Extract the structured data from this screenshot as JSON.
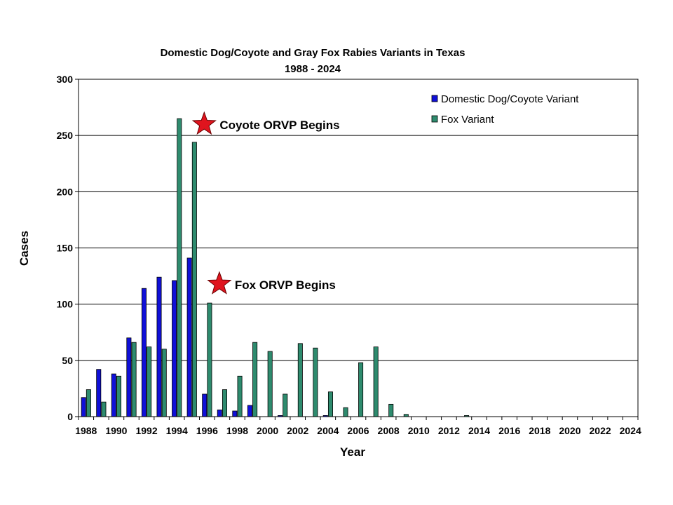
{
  "chart_data": {
    "type": "bar",
    "title": "Domestic Dog/Coyote and Gray Fox Rabies Variants in Texas",
    "subtitle": "1988 - 2024",
    "xlabel": "Year",
    "ylabel": "Cases",
    "ylim": [
      0,
      300
    ],
    "yticks": [
      0,
      50,
      100,
      150,
      200,
      250,
      300
    ],
    "grid": true,
    "legend_position": "top-right",
    "categories": [
      "1988",
      "1989",
      "1990",
      "1991",
      "1992",
      "1993",
      "1994",
      "1995",
      "1996",
      "1997",
      "1998",
      "1999",
      "2000",
      "2001",
      "2002",
      "2003",
      "2004",
      "2005",
      "2006",
      "2007",
      "2008",
      "2009",
      "2010",
      "2011",
      "2012",
      "2013",
      "2014",
      "2015",
      "2016",
      "2017",
      "2018",
      "2019",
      "2020",
      "2021",
      "2022",
      "2023",
      "2024"
    ],
    "tick_labels": [
      "1988",
      "1990",
      "1992",
      "1994",
      "1996",
      "1998",
      "2000",
      "2002",
      "2004",
      "2006",
      "2008",
      "2010",
      "2012",
      "2014",
      "2016",
      "2018",
      "2020",
      "2022",
      "2024"
    ],
    "series": [
      {
        "name": "Domestic Dog/Coyote Variant",
        "color": "#1010d8",
        "values": [
          17,
          42,
          38,
          70,
          114,
          124,
          121,
          141,
          20,
          6,
          5,
          10,
          0,
          1,
          0,
          0,
          1,
          0,
          0,
          0,
          0,
          0,
          0,
          0,
          0,
          0,
          0,
          0,
          0,
          0,
          0,
          0,
          0,
          0,
          0,
          0,
          0
        ]
      },
      {
        "name": "Fox Variant",
        "color": "#2e8b6e",
        "values": [
          24,
          13,
          36,
          66,
          62,
          60,
          265,
          244,
          101,
          24,
          36,
          66,
          58,
          20,
          65,
          61,
          22,
          8,
          48,
          62,
          11,
          2,
          0,
          0,
          0,
          1,
          0,
          0,
          0,
          0,
          0,
          0,
          0,
          0,
          0,
          0,
          0
        ]
      }
    ],
    "annotations": [
      {
        "text": "Coyote ORVP Begins",
        "year": "1996",
        "y": 260
      },
      {
        "text": "Fox ORVP Begins",
        "year": "1997",
        "y": 118
      }
    ],
    "star_color": "#e0141e"
  }
}
